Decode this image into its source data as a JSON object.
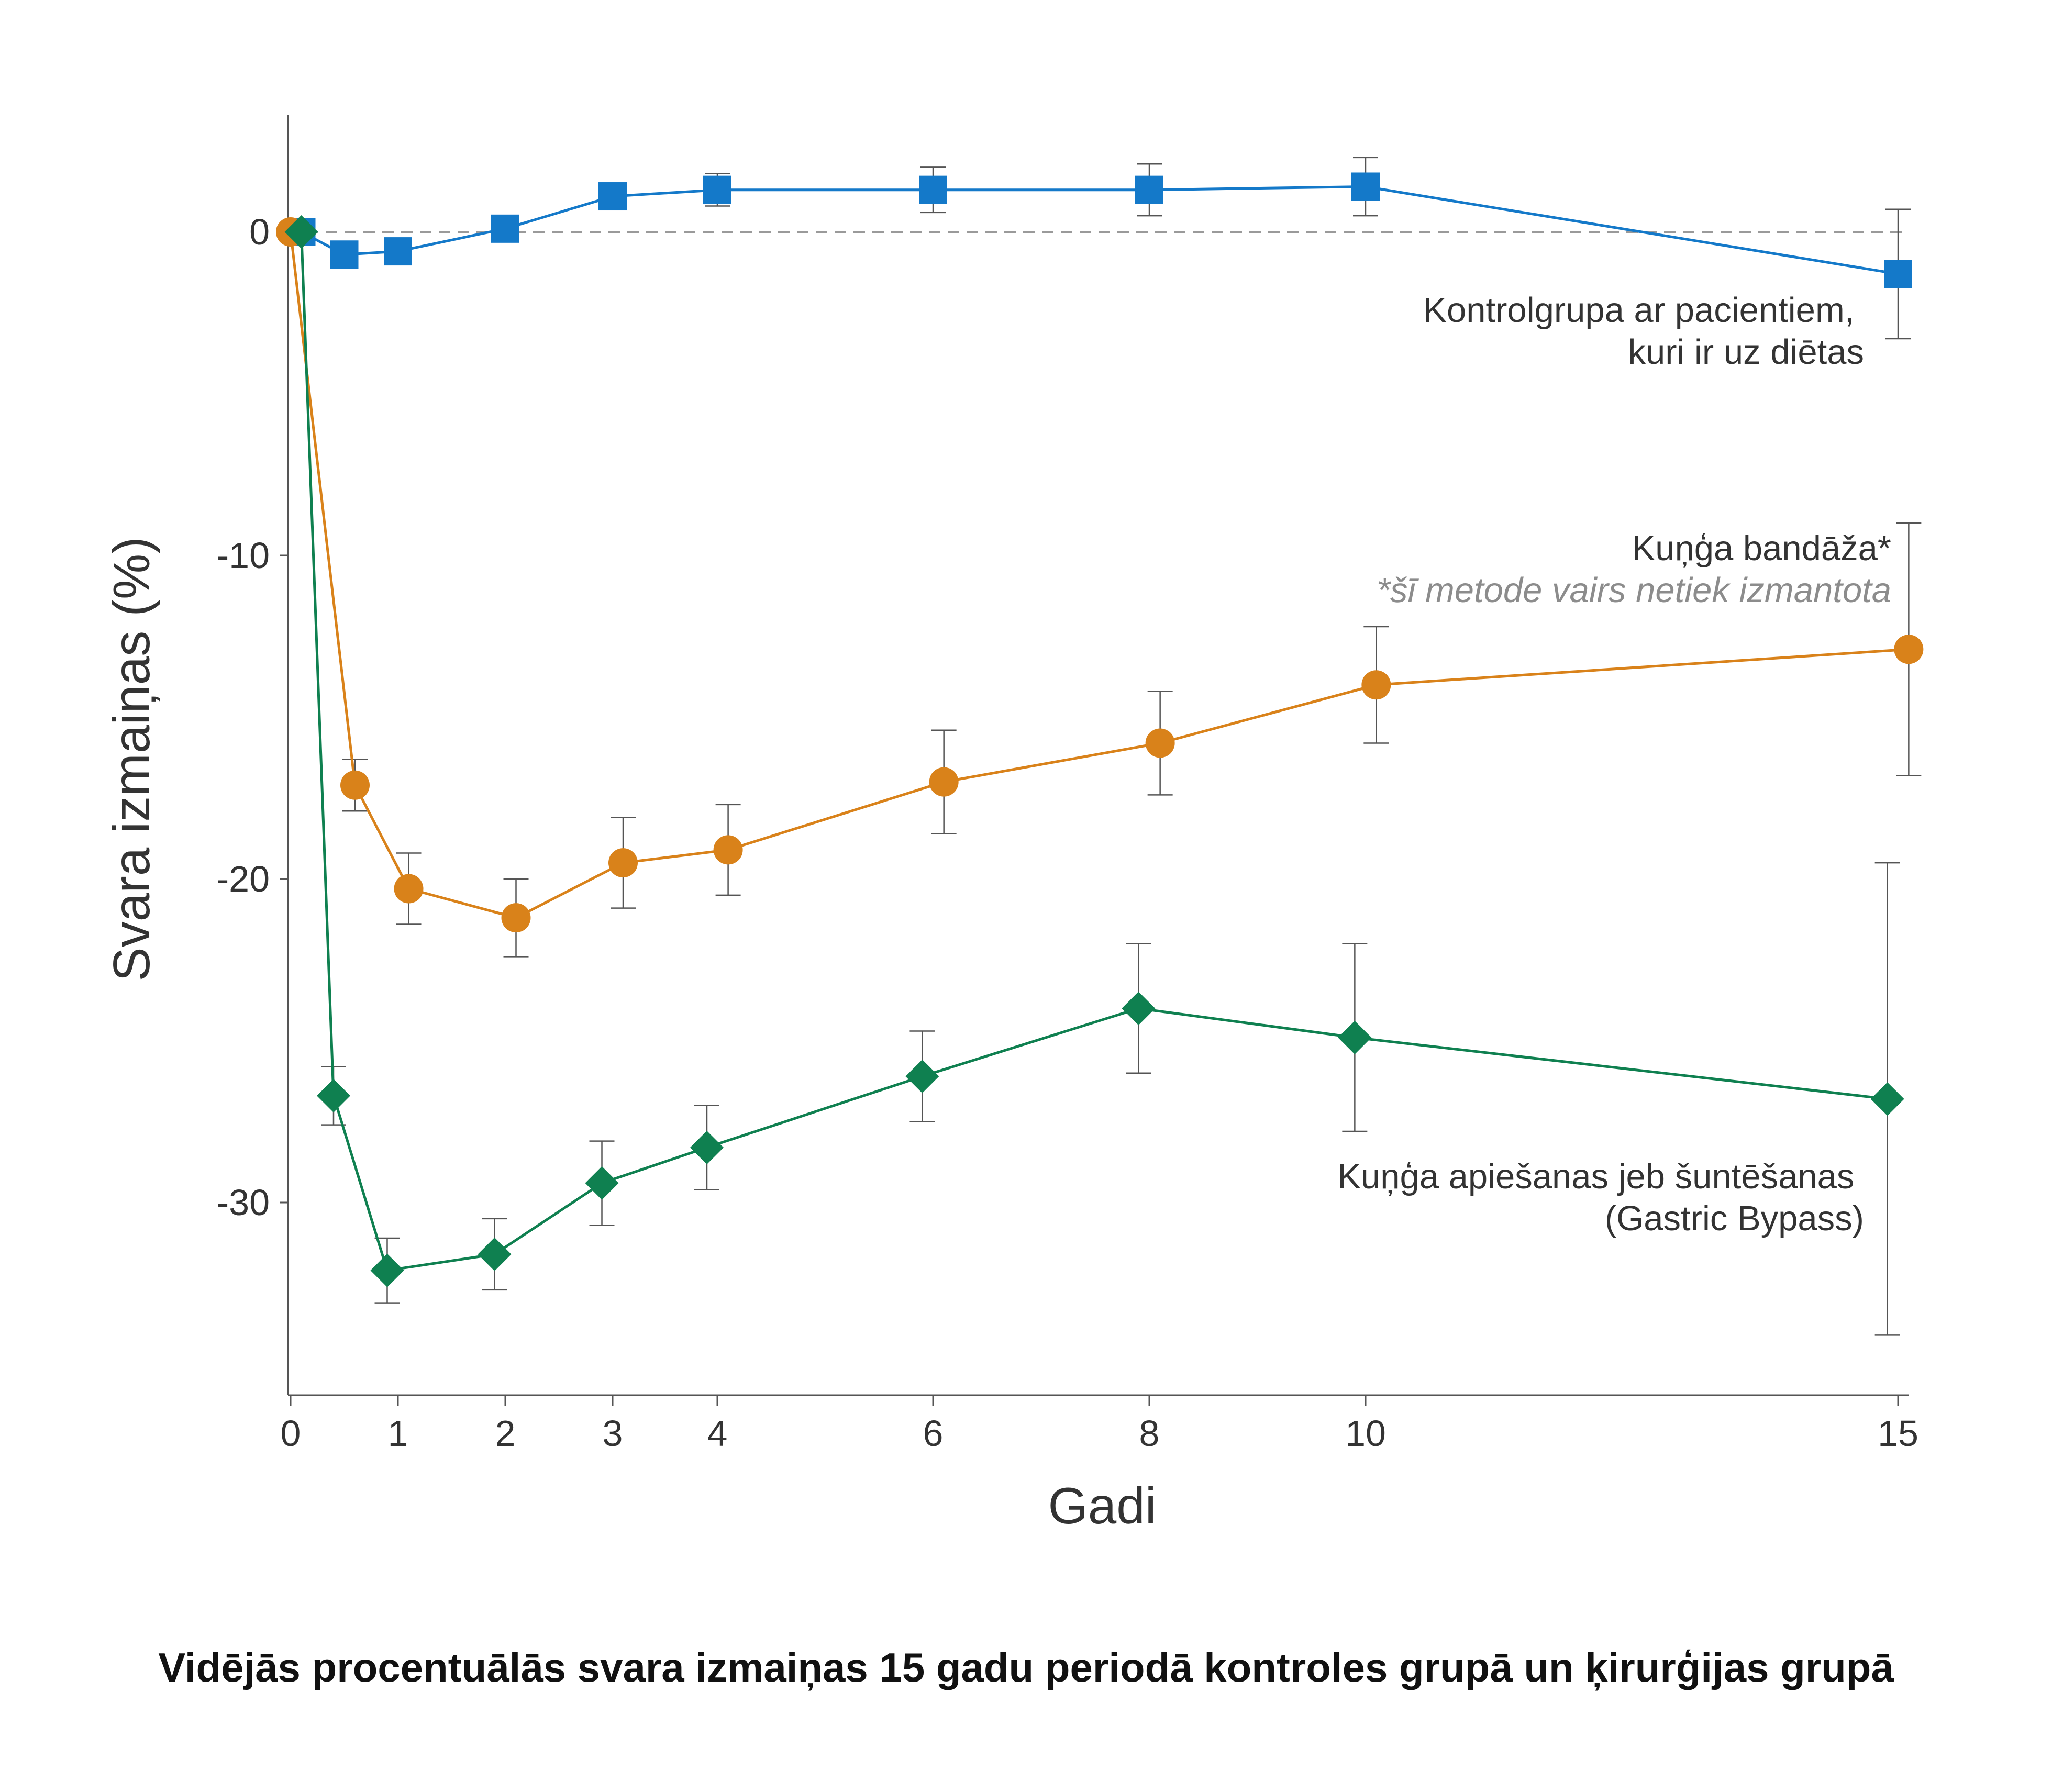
{
  "caption": "Vidējās procentuālās svara izmaiņas 15 gadu periodā kontroles grupā un ķirurģijas grupā",
  "chart_data": {
    "type": "line",
    "xlabel": "Gadi",
    "ylabel": "Svara izmaiņas (%)",
    "x_ticks": [
      0,
      1,
      2,
      3,
      4,
      6,
      8,
      10,
      15
    ],
    "y_ticks": [
      0,
      -10,
      -20,
      -30
    ],
    "xlim": [
      0,
      15
    ],
    "ylim": [
      -36,
      3.5
    ],
    "reference_line": {
      "y": 0,
      "style": "dashed"
    },
    "grid": false,
    "series": [
      {
        "name": "Kontrolgrupa ar pacientiem, kuri ir uz diētas",
        "label_lines": [
          "Kontrolgrupa ar pacientiem,",
          "kuri ir uz diētas"
        ],
        "color": "#1479c9",
        "marker": "square",
        "points": [
          {
            "x": 0.1,
            "y": 0,
            "err": 0
          },
          {
            "x": 0.5,
            "y": -0.7,
            "err": 0.4
          },
          {
            "x": 1,
            "y": -0.6,
            "err": 0.4
          },
          {
            "x": 2,
            "y": 0.1,
            "err": 0.4
          },
          {
            "x": 3,
            "y": 1.1,
            "err": 0.4
          },
          {
            "x": 4,
            "y": 1.3,
            "err": 0.5
          },
          {
            "x": 6,
            "y": 1.3,
            "err": 0.7
          },
          {
            "x": 8,
            "y": 1.3,
            "err": 0.8
          },
          {
            "x": 10,
            "y": 1.4,
            "err": 0.9
          },
          {
            "x": 15,
            "y": -1.3,
            "err": 2
          }
        ]
      },
      {
        "name": "Kuņģa bandāža*",
        "label_lines": [
          "Kuņģa bandāža*"
        ],
        "note": "*šī metode vairs netiek izmantota",
        "color": "#d9821a",
        "marker": "circle",
        "points": [
          {
            "x": 0,
            "y": 0,
            "err": 0
          },
          {
            "x": 0.6,
            "y": -17.1,
            "err": 0.8
          },
          {
            "x": 1.1,
            "y": -20.3,
            "err": 1.1
          },
          {
            "x": 2.1,
            "y": -21.2,
            "err": 1.2
          },
          {
            "x": 3.1,
            "y": -19.5,
            "err": 1.4
          },
          {
            "x": 4.1,
            "y": -19.1,
            "err": 1.4
          },
          {
            "x": 6.1,
            "y": -17.0,
            "err": 1.6
          },
          {
            "x": 8.1,
            "y": -15.8,
            "err": 1.6
          },
          {
            "x": 10.1,
            "y": -14.0,
            "err": 1.8
          },
          {
            "x": 15.1,
            "y": -12.9,
            "err": 3.9
          }
        ]
      },
      {
        "name": "Kuņģa apiešanas jeb šuntēšanas (Gastric Bypass)",
        "label_lines": [
          "Kuņģa apiešanas jeb šuntēšanas",
          "(Gastric Bypass)"
        ],
        "color": "#0f8050",
        "marker": "diamond",
        "points": [
          {
            "x": 0.1,
            "y": 0,
            "err": 0
          },
          {
            "x": 0.4,
            "y": -26.7,
            "err": 0.9
          },
          {
            "x": 0.9,
            "y": -32.1,
            "err": 1.0
          },
          {
            "x": 1.9,
            "y": -31.6,
            "err": 1.1
          },
          {
            "x": 2.9,
            "y": -29.4,
            "err": 1.3
          },
          {
            "x": 3.9,
            "y": -28.3,
            "err": 1.3
          },
          {
            "x": 5.9,
            "y": -26.1,
            "err": 1.4
          },
          {
            "x": 7.9,
            "y": -24.0,
            "err": 2.0
          },
          {
            "x": 9.9,
            "y": -24.9,
            "err": 2.9
          },
          {
            "x": 14.9,
            "y": -26.8,
            "err": 7.3
          }
        ]
      }
    ]
  }
}
